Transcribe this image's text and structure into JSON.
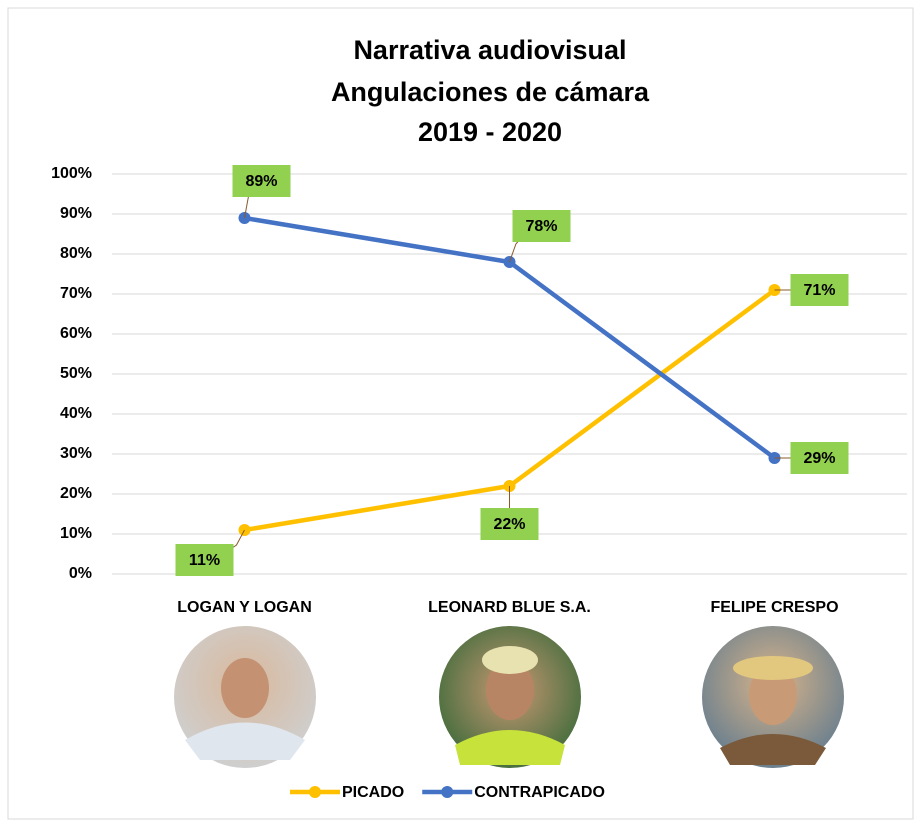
{
  "chart_data": {
    "type": "line",
    "title": [
      "Narrativa audiovisual",
      "Angulaciones de cámara",
      "2019 - 2020"
    ],
    "categories": [
      "LOGAN Y LOGAN",
      "LEONARD BLUE S.A.",
      "FELIPE CRESPO"
    ],
    "series": [
      {
        "name": "PICADO",
        "color": "#ffc000",
        "values": [
          11,
          22,
          71
        ],
        "value_labels": [
          "11%",
          "22%",
          "71%"
        ]
      },
      {
        "name": "CONTRAPICADO",
        "color": "#4472c4",
        "values": [
          89,
          78,
          29
        ],
        "value_labels": [
          "89%",
          "78%",
          "29%"
        ]
      }
    ],
    "ylim": [
      0,
      100
    ],
    "yticks": [
      {
        "value": 0,
        "label": "0%"
      },
      {
        "value": 10,
        "label": "10%"
      },
      {
        "value": 20,
        "label": "20%"
      },
      {
        "value": 30,
        "label": "30%"
      },
      {
        "value": 40,
        "label": "40%"
      },
      {
        "value": 50,
        "label": "50%"
      },
      {
        "value": 60,
        "label": "60%"
      },
      {
        "value": 70,
        "label": "70%"
      },
      {
        "value": 80,
        "label": "80%"
      },
      {
        "value": 90,
        "label": "90%"
      },
      {
        "value": 100,
        "label": "100%"
      }
    ],
    "grid": true,
    "legend": "bottom",
    "label_color": "#92d050"
  }
}
